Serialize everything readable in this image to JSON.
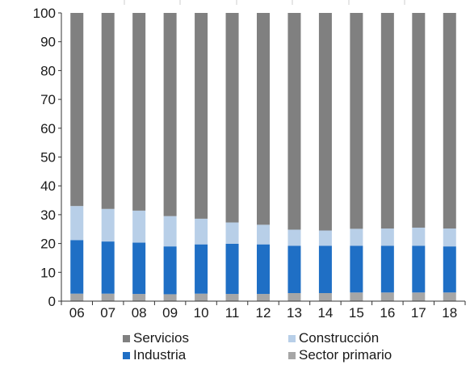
{
  "chart_data": {
    "type": "bar",
    "stacked": true,
    "categories": [
      "06",
      "07",
      "08",
      "09",
      "10",
      "11",
      "12",
      "13",
      "14",
      "15",
      "16",
      "17",
      "18"
    ],
    "series": [
      {
        "name": "Sector primario",
        "color": "#a6a6a6",
        "values": [
          2.6,
          2.6,
          2.5,
          2.4,
          2.6,
          2.5,
          2.5,
          2.8,
          2.8,
          3.0,
          3.0,
          3.0,
          3.0
        ]
      },
      {
        "name": "Industria",
        "color": "#1f6fc5",
        "values": [
          18.6,
          18.1,
          17.8,
          16.6,
          17.1,
          17.4,
          17.2,
          16.4,
          16.4,
          16.2,
          16.2,
          16.2,
          16.0
        ]
      },
      {
        "name": "Construcción",
        "color": "#b8cfe8",
        "values": [
          11.8,
          11.3,
          11.1,
          10.5,
          8.9,
          7.4,
          6.8,
          5.6,
          5.3,
          5.9,
          6.0,
          6.3,
          6.2
        ]
      },
      {
        "name": "Servicios",
        "color": "#808080",
        "values": [
          67.0,
          68.0,
          68.6,
          70.5,
          71.4,
          72.7,
          73.5,
          75.2,
          75.5,
          74.9,
          74.8,
          74.5,
          74.8
        ]
      }
    ],
    "yticks": [
      "0",
      "10",
      "20",
      "30",
      "40",
      "50",
      "60",
      "70",
      "80",
      "90",
      "100"
    ],
    "ylim": [
      0,
      100
    ],
    "legend": [
      {
        "name": "Servicios",
        "color": "#808080"
      },
      {
        "name": "Construcción",
        "color": "#b8cfe8"
      },
      {
        "name": "Industria",
        "color": "#1f6fc5"
      },
      {
        "name": "Sector primario",
        "color": "#a6a6a6"
      }
    ],
    "legend_position": "bottom"
  }
}
